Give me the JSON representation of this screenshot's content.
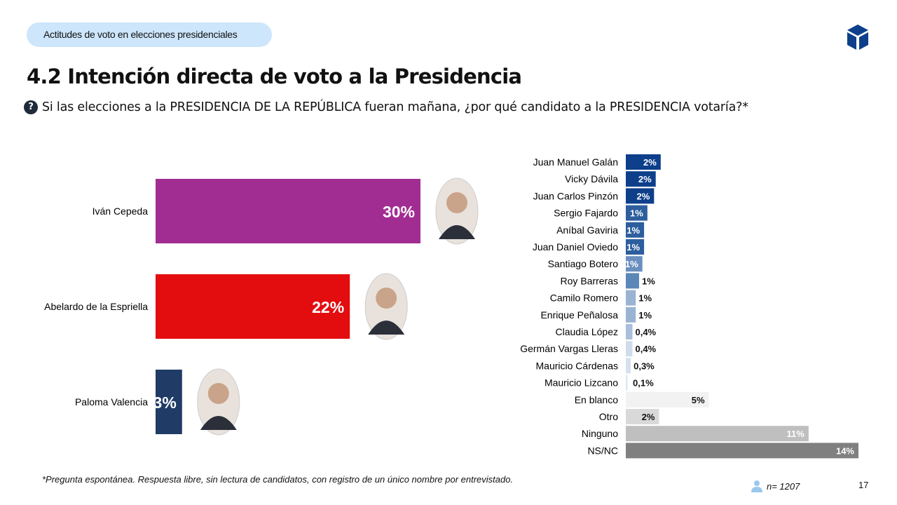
{
  "header": {
    "section": "Actitudes de voto en elecciones presidenciales",
    "title": "4.2 Intención directa de voto a la Presidencia",
    "question": "Si las elecciones a la PRESIDENCIA DE LA REPÚBLICA fueran mañana, ¿por qué candidato a la PRESIDENCIA votaría?*",
    "question_icon": "question-circle-icon",
    "logo_icon": "cube-logo-icon"
  },
  "footer": {
    "note": "*Pregunta espontánea. Respuesta libre, sin lectura de candidatos, con registro de un único nombre por entrevistado.",
    "sample": "n= 1207",
    "sample_icon": "person-icon",
    "page": "17"
  },
  "chart_data": [
    {
      "type": "bar",
      "orientation": "horizontal",
      "categories": [
        "Iván Cepeda",
        "Abelardo de la Espriella",
        "Paloma Valencia"
      ],
      "values": [
        30,
        22,
        3
      ],
      "labels": [
        "30%",
        "22%",
        "3%"
      ],
      "colors": [
        "#a22d92",
        "#e30c0f",
        "#1f3b66"
      ],
      "xlim": [
        0,
        30
      ]
    },
    {
      "type": "bar",
      "orientation": "horizontal",
      "categories": [
        "Juan Manuel Galán",
        "Vicky Dávila",
        "Juan Carlos Pinzón",
        "Sergio Fajardo",
        "Aníbal Gaviria",
        "Juan Daniel Oviedo",
        "Santiago Botero",
        "Roy Barreras",
        "Camilo Romero",
        "Enrique Peñalosa",
        "Claudia López",
        "Germán Vargas Lleras",
        "Mauricio Cárdenas",
        "Mauricio Lizcano",
        "En blanco",
        "Otro",
        "Ninguno",
        "NS/NC"
      ],
      "values": [
        2.1,
        1.8,
        1.7,
        1.3,
        1.1,
        1.1,
        1.0,
        0.8,
        0.6,
        0.6,
        0.4,
        0.4,
        0.3,
        0.1,
        5,
        2,
        11,
        14
      ],
      "labels": [
        "2%",
        "2%",
        "2%",
        "1%",
        "1%",
        "1%",
        "1%",
        "1%",
        "1%",
        "1%",
        "0,4%",
        "0,4%",
        "0,3%",
        "0,1%",
        "5%",
        "2%",
        "11%",
        "14%"
      ],
      "colors": [
        "#0d3f8a",
        "#0d3f8a",
        "#0d3f8a",
        "#2d5e9e",
        "#2d5e9e",
        "#2d5e9e",
        "#6a8fbf",
        "#5b86b8",
        "#9bb3d3",
        "#9bb3d3",
        "#a9bfdb",
        "#d0dcec",
        "#d6e0ee",
        "#dde6f1",
        "#f2f2f2",
        "#d9d9d9",
        "#bfbfbf",
        "#808080"
      ],
      "label_colors": [
        "#fff",
        "#fff",
        "#fff",
        "#fff",
        "#fff",
        "#fff",
        "#fff",
        "#111",
        "#111",
        "#111",
        "#111",
        "#111",
        "#111",
        "#111",
        "#111",
        "#111",
        "#fff",
        "#fff"
      ],
      "xlim": [
        0,
        14
      ]
    }
  ]
}
